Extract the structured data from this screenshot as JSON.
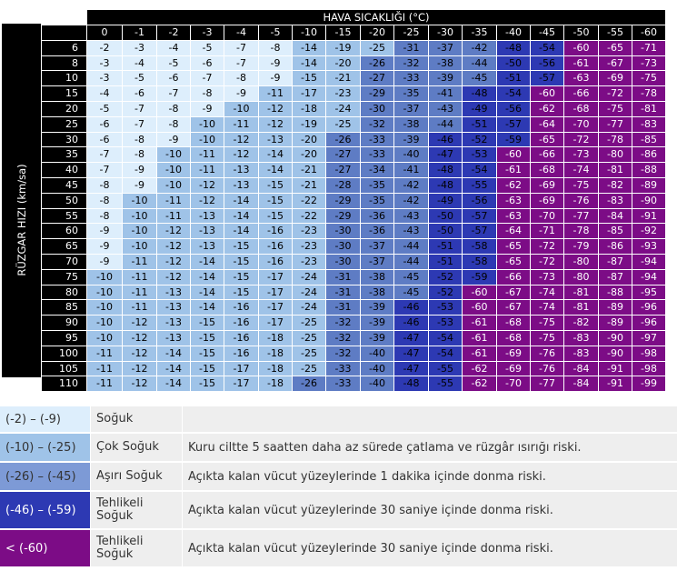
{
  "table": {
    "title": "HAVA SICAKLIĞI (°C)",
    "y_axis_label": "RÜZGAR HIZI (km/sa)",
    "temperatures": [
      "0",
      "-1",
      "-2",
      "-3",
      "-4",
      "-5",
      "-10",
      "-15",
      "-20",
      "-25",
      "-30",
      "-35",
      "-40",
      "-45",
      "-50",
      "-55",
      "-60"
    ],
    "rows": [
      {
        "speed": "6",
        "values": [
          "-2",
          "-3",
          "-4",
          "-5",
          "-7",
          "-8",
          "-14",
          "-19",
          "-25",
          "-31",
          "-37",
          "-42",
          "-48",
          "-54",
          "-60",
          "-65",
          "-71"
        ]
      },
      {
        "speed": "8",
        "values": [
          "-3",
          "-4",
          "-5",
          "-6",
          "-7",
          "-9",
          "-14",
          "-20",
          "-26",
          "-32",
          "-38",
          "-44",
          "-50",
          "-56",
          "-61",
          "-67",
          "-73"
        ]
      },
      {
        "speed": "10",
        "values": [
          "-3",
          "-5",
          "-6",
          "-7",
          "-8",
          "-9",
          "-15",
          "-21",
          "-27",
          "-33",
          "-39",
          "-45",
          "-51",
          "-57",
          "-63",
          "-69",
          "-75"
        ]
      },
      {
        "speed": "15",
        "values": [
          "-4",
          "-6",
          "-7",
          "-8",
          "-9",
          "-11",
          "-17",
          "-23",
          "-29",
          "-35",
          "-41",
          "-48",
          "-54",
          "-60",
          "-66",
          "-72",
          "-78"
        ]
      },
      {
        "speed": "20",
        "values": [
          "-5",
          "-7",
          "-8",
          "-9",
          "-10",
          "-12",
          "-18",
          "-24",
          "-30",
          "-37",
          "-43",
          "-49",
          "-56",
          "-62",
          "-68",
          "-75",
          "-81"
        ]
      },
      {
        "speed": "25",
        "values": [
          "-6",
          "-7",
          "-8",
          "-10",
          "-11",
          "-12",
          "-19",
          "-25",
          "-32",
          "-38",
          "-44",
          "-51",
          "-57",
          "-64",
          "-70",
          "-77",
          "-83"
        ]
      },
      {
        "speed": "30",
        "values": [
          "-6",
          "-8",
          "-9",
          "-10",
          "-12",
          "-13",
          "-20",
          "-26",
          "-33",
          "-39",
          "-46",
          "-52",
          "-59",
          "-65",
          "-72",
          "-78",
          "-85"
        ]
      },
      {
        "speed": "35",
        "values": [
          "-7",
          "-8",
          "-10",
          "-11",
          "-12",
          "-14",
          "-20",
          "-27",
          "-33",
          "-40",
          "-47",
          "-53",
          "-60",
          "-66",
          "-73",
          "-80",
          "-86"
        ]
      },
      {
        "speed": "40",
        "values": [
          "-7",
          "-9",
          "-10",
          "-11",
          "-13",
          "-14",
          "-21",
          "-27",
          "-34",
          "-41",
          "-48",
          "-54",
          "-61",
          "-68",
          "-74",
          "-81",
          "-88"
        ]
      },
      {
        "speed": "45",
        "values": [
          "-8",
          "-9",
          "-10",
          "-12",
          "-13",
          "-15",
          "-21",
          "-28",
          "-35",
          "-42",
          "-48",
          "-55",
          "-62",
          "-69",
          "-75",
          "-82",
          "-89"
        ]
      },
      {
        "speed": "50",
        "values": [
          "-8",
          "-10",
          "-11",
          "-12",
          "-14",
          "-15",
          "-22",
          "-29",
          "-35",
          "-42",
          "-49",
          "-56",
          "-63",
          "-69",
          "-76",
          "-83",
          "-90"
        ]
      },
      {
        "speed": "55",
        "values": [
          "-8",
          "-10",
          "-11",
          "-13",
          "-14",
          "-15",
          "-22",
          "-29",
          "-36",
          "-43",
          "-50",
          "-57",
          "-63",
          "-70",
          "-77",
          "-84",
          "-91"
        ]
      },
      {
        "speed": "60",
        "values": [
          "-9",
          "-10",
          "-12",
          "-13",
          "-14",
          "-16",
          "-23",
          "-30",
          "-36",
          "-43",
          "-50",
          "-57",
          "-64",
          "-71",
          "-78",
          "-85",
          "-92"
        ]
      },
      {
        "speed": "65",
        "values": [
          "-9",
          "-10",
          "-12",
          "-13",
          "-15",
          "-16",
          "-23",
          "-30",
          "-37",
          "-44",
          "-51",
          "-58",
          "-65",
          "-72",
          "-79",
          "-86",
          "-93"
        ]
      },
      {
        "speed": "70",
        "values": [
          "-9",
          "-11",
          "-12",
          "-14",
          "-15",
          "-16",
          "-23",
          "-30",
          "-37",
          "-44",
          "-51",
          "-58",
          "-65",
          "-72",
          "-80",
          "-87",
          "-94"
        ]
      },
      {
        "speed": "75",
        "values": [
          "-10",
          "-11",
          "-12",
          "-14",
          "-15",
          "-17",
          "-24",
          "-31",
          "-38",
          "-45",
          "-52",
          "-59",
          "-66",
          "-73",
          "-80",
          "-87",
          "-94"
        ]
      },
      {
        "speed": "80",
        "values": [
          "-10",
          "-11",
          "-13",
          "-14",
          "-15",
          "-17",
          "-24",
          "-31",
          "-38",
          "-45",
          "-52",
          "-60",
          "-67",
          "-74",
          "-81",
          "-88",
          "-95"
        ]
      },
      {
        "speed": "85",
        "values": [
          "-10",
          "-11",
          "-13",
          "-14",
          "-16",
          "-17",
          "-24",
          "-31",
          "-39",
          "-46",
          "-53",
          "-60",
          "-67",
          "-74",
          "-81",
          "-89",
          "-96"
        ]
      },
      {
        "speed": "90",
        "values": [
          "-10",
          "-12",
          "-13",
          "-15",
          "-16",
          "-17",
          "-25",
          "-32",
          "-39",
          "-46",
          "-53",
          "-61",
          "-68",
          "-75",
          "-82",
          "-89",
          "-96"
        ]
      },
      {
        "speed": "95",
        "values": [
          "-10",
          "-12",
          "-13",
          "-15",
          "-16",
          "-18",
          "-25",
          "-32",
          "-39",
          "-47",
          "-54",
          "-61",
          "-68",
          "-75",
          "-83",
          "-90",
          "-97"
        ]
      },
      {
        "speed": "100",
        "values": [
          "-11",
          "-12",
          "-14",
          "-15",
          "-16",
          "-18",
          "-25",
          "-32",
          "-40",
          "-47",
          "-54",
          "-61",
          "-69",
          "-76",
          "-83",
          "-90",
          "-98"
        ]
      },
      {
        "speed": "105",
        "values": [
          "-11",
          "-12",
          "-14",
          "-15",
          "-17",
          "-18",
          "-25",
          "-33",
          "-40",
          "-47",
          "-55",
          "-62",
          "-69",
          "-76",
          "-84",
          "-91",
          "-98"
        ]
      },
      {
        "speed": "110",
        "values": [
          "-11",
          "-12",
          "-14",
          "-15",
          "-17",
          "-18",
          "-26",
          "-33",
          "-40",
          "-48",
          "-55",
          "-62",
          "-70",
          "-77",
          "-84",
          "-91",
          "-99"
        ]
      }
    ]
  },
  "category_colors": {
    "c1": "#ddeefc",
    "c2": "#9fc3e8",
    "c3": "#5e7cc4",
    "c4": "#2d39b3",
    "c5": "#7c0c86"
  },
  "legend": [
    {
      "range": "(-2) – (-9)",
      "name": "Soğuk",
      "description": ""
    },
    {
      "range": "(-10) – (-25)",
      "name": "Çok Soğuk",
      "description": "Kuru ciltte 5 saatten daha az sürede çatlama ve rüzgâr ısırığı riski."
    },
    {
      "range": "(-26) – (-45)",
      "name": "Aşırı Soğuk",
      "description": "Açıkta kalan vücut yüzeylerinde 1 dakika içinde donma riski."
    },
    {
      "range": "(-46) – (-59)",
      "name": "Tehlikeli Soğuk",
      "description": "Açıkta kalan vücut yüzeylerinde 30 saniye içinde donma riski."
    },
    {
      "range": "< (-60)",
      "name": "Tehlikeli Soğuk",
      "description": "Açıkta kalan vücut yüzeylerinde 30 saniye içinde donma riski."
    }
  ]
}
